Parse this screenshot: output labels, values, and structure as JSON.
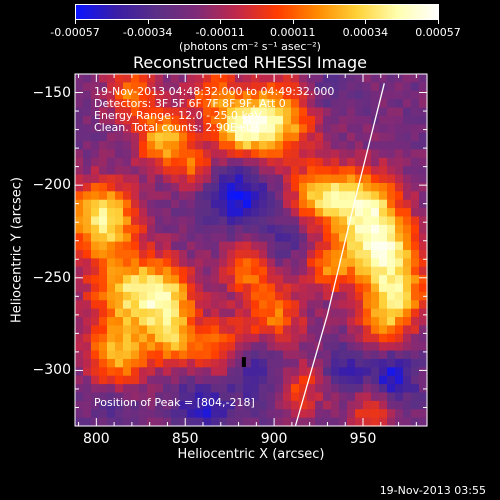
{
  "colorbar": {
    "min": -0.00057,
    "max": 0.00057,
    "tick_labels": [
      "-0.00057",
      "-0.00034",
      "-0.00011",
      "0.00011",
      "0.00034",
      "0.00057"
    ],
    "units": "(photons cm⁻² s⁻¹ asec⁻²)",
    "colormap": [
      "#0a14ff",
      "#3a1ea6",
      "#5a2f86",
      "#7e2a78",
      "#c0284a",
      "#ff3b00",
      "#ff8a00",
      "#ffd23a",
      "#ffffb0",
      "#ffffff"
    ]
  },
  "title": "Reconstructed RHESSI Image",
  "annotations": {
    "time_range": "19-Nov-2013 04:48:32.000 to 04:49:32.000",
    "detectors": "Detectors: 3F 5F 6F 7F 8F 9F, Att 0",
    "energy_range": "Energy Range: 12.0 - 25.0 keV",
    "clean_counts": "Clean. Total counts: 2.90E+03",
    "peak_position": "Position of Peak = [804,-218]"
  },
  "axes": {
    "xlabel": "Heliocentric X (arcsec)",
    "ylabel": "Heliocentric Y (arcsec)",
    "xlim": [
      788,
      986
    ],
    "ylim": [
      -330,
      -140
    ],
    "x_ticks": [
      800,
      850,
      900,
      950
    ],
    "y_ticks": [
      -150,
      -200,
      -250,
      -300
    ],
    "x_tick_labels": [
      "800",
      "850",
      "900",
      "950"
    ],
    "y_tick_labels": [
      "−150",
      "−200",
      "−250",
      "−300"
    ]
  },
  "image": {
    "grid_cols": 44,
    "grid_rows": 42,
    "sources": [
      {
        "x": 803,
        "y": -218,
        "amp": 1.0,
        "r": 14
      },
      {
        "x": 818,
        "y": -258,
        "amp": 0.8,
        "r": 16
      },
      {
        "x": 812,
        "y": -292,
        "amp": 0.75,
        "r": 12
      },
      {
        "x": 840,
        "y": -260,
        "amp": 0.7,
        "r": 12
      },
      {
        "x": 843,
        "y": -283,
        "amp": 0.65,
        "r": 10
      },
      {
        "x": 872,
        "y": -290,
        "amp": 0.7,
        "r": 12
      },
      {
        "x": 900,
        "y": -270,
        "amp": 0.6,
        "r": 12
      },
      {
        "x": 885,
        "y": -245,
        "amp": 0.55,
        "r": 10
      },
      {
        "x": 900,
        "y": -165,
        "amp": 0.95,
        "r": 15
      },
      {
        "x": 880,
        "y": -170,
        "amp": 0.75,
        "r": 10
      },
      {
        "x": 838,
        "y": -175,
        "amp": 0.8,
        "r": 11
      },
      {
        "x": 820,
        "y": -150,
        "amp": 0.6,
        "r": 10
      },
      {
        "x": 865,
        "y": -150,
        "amp": 0.55,
        "r": 10
      },
      {
        "x": 960,
        "y": -235,
        "amp": 1.0,
        "r": 15
      },
      {
        "x": 950,
        "y": -210,
        "amp": 0.85,
        "r": 14
      },
      {
        "x": 970,
        "y": -260,
        "amp": 0.7,
        "r": 12
      },
      {
        "x": 925,
        "y": -205,
        "amp": 0.75,
        "r": 11
      },
      {
        "x": 930,
        "y": -245,
        "amp": 0.55,
        "r": 9
      },
      {
        "x": 960,
        "y": -275,
        "amp": 0.5,
        "r": 10
      },
      {
        "x": 915,
        "y": -310,
        "amp": 0.45,
        "r": 10
      },
      {
        "x": 955,
        "y": -320,
        "amp": 0.45,
        "r": 10
      },
      {
        "x": 855,
        "y": -190,
        "amp": 0.5,
        "r": 8
      }
    ],
    "holes": [
      {
        "x": 880,
        "y": -205,
        "amp": 1.0,
        "r": 12
      },
      {
        "x": 885,
        "y": -298,
        "amp": 0.95,
        "r": 12
      },
      {
        "x": 860,
        "y": -318,
        "amp": 0.8,
        "r": 10
      },
      {
        "x": 965,
        "y": -305,
        "amp": 0.9,
        "r": 10
      },
      {
        "x": 940,
        "y": -300,
        "amp": 0.55,
        "r": 9
      },
      {
        "x": 905,
        "y": -230,
        "amp": 0.45,
        "r": 8
      },
      {
        "x": 930,
        "y": -150,
        "amp": 0.4,
        "r": 8
      },
      {
        "x": 810,
        "y": -320,
        "amp": 0.35,
        "r": 8
      }
    ],
    "limb_points": [
      [
        912,
        -330
      ],
      [
        930,
        -270
      ],
      [
        945,
        -210
      ],
      [
        962,
        -145
      ]
    ]
  },
  "timestamp": "19-Nov-2013 03:55"
}
